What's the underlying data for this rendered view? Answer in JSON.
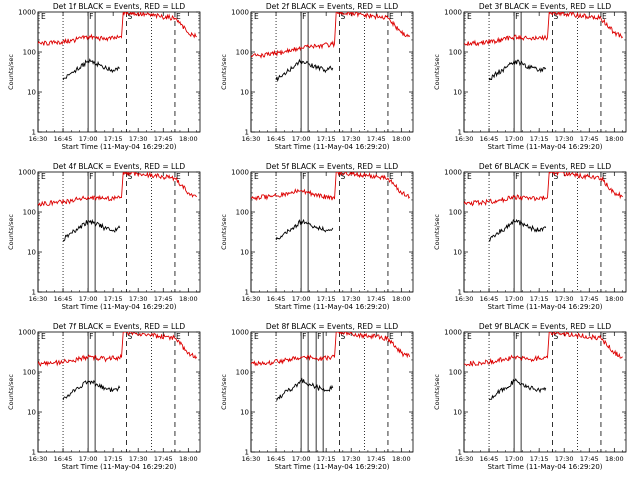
{
  "chart_data": [
    {
      "type": "line",
      "title": "Det 1f BLACK = Events, RED = LLD",
      "xlabel": "Start Time (11-May-04 16:29:20)",
      "ylabel": "Counts/sec",
      "log_y": true,
      "ylim": [
        1,
        1000
      ],
      "xlim": [
        "16:30",
        "18:07"
      ],
      "xticks": [
        "16:30",
        "16:45",
        "17:00",
        "17:15",
        "17:30",
        "17:45",
        "18:00"
      ],
      "yticks": [
        "1",
        "10",
        "100",
        "1000"
      ],
      "markers": [
        {
          "label": "E",
          "time": "16:30"
        },
        {
          "label": "F",
          "time": "17:00"
        },
        {
          "label": "S",
          "time": "17:23"
        },
        {
          "label": "E",
          "time": "17:52"
        }
      ],
      "series": [
        {
          "name": "BLACK = Events",
          "color": "#000000",
          "x": [
            "16:45",
            "16:50",
            "16:55",
            "17:00",
            "17:05",
            "17:10",
            "17:15",
            "17:19"
          ],
          "values": [
            20,
            30,
            40,
            60,
            50,
            40,
            35,
            40
          ]
        },
        {
          "name": "RED = LLD",
          "color": "#dd0000",
          "x": [
            "16:30",
            "16:40",
            "16:50",
            "17:00",
            "17:10",
            "17:20",
            "17:21",
            "17:52",
            "18:00",
            "18:05"
          ],
          "values": [
            160,
            170,
            190,
            240,
            210,
            230,
            1000,
            700,
            300,
            240
          ]
        }
      ]
    },
    {
      "type": "line",
      "title": "Det 2f BLACK = Events, RED = LLD",
      "xlabel": "Start Time (11-May-04 16:29:20)",
      "ylabel": "Counts/sec",
      "log_y": true,
      "ylim": [
        1,
        1000
      ],
      "xlim": [
        "16:30",
        "18:07"
      ],
      "xticks": [
        "16:30",
        "16:45",
        "17:00",
        "17:15",
        "17:30",
        "17:45",
        "18:00"
      ],
      "yticks": [
        "1",
        "10",
        "100",
        "1000"
      ],
      "markers": [
        {
          "label": "E",
          "time": "16:30"
        },
        {
          "label": "F",
          "time": "17:00"
        },
        {
          "label": "S",
          "time": "17:23"
        },
        {
          "label": "E",
          "time": "17:52"
        }
      ],
      "series": [
        {
          "name": "BLACK = Events",
          "color": "#000000",
          "x": [
            "16:45",
            "16:50",
            "16:55",
            "17:00",
            "17:05",
            "17:10",
            "17:15",
            "17:19"
          ],
          "values": [
            20,
            30,
            40,
            60,
            50,
            40,
            35,
            40
          ]
        },
        {
          "name": "RED = LLD",
          "color": "#dd0000",
          "x": [
            "16:30",
            "16:40",
            "16:50",
            "17:00",
            "17:10",
            "17:20",
            "17:21",
            "17:52",
            "18:00",
            "18:05"
          ],
          "values": [
            80,
            85,
            100,
            130,
            140,
            160,
            1000,
            700,
            300,
            240
          ]
        }
      ]
    },
    {
      "type": "line",
      "title": "Det 3f BLACK = Events, RED = LLD",
      "xlabel": "Start Time (11-May-04 16:29:20)",
      "ylabel": "Counts/sec",
      "log_y": true,
      "ylim": [
        1,
        1000
      ],
      "xlim": [
        "16:30",
        "18:07"
      ],
      "xticks": [
        "16:30",
        "16:45",
        "17:00",
        "17:15",
        "17:30",
        "17:45",
        "18:00"
      ],
      "yticks": [
        "1",
        "10",
        "100",
        "1000"
      ],
      "markers": [
        {
          "label": "E",
          "time": "16:30"
        },
        {
          "label": "F",
          "time": "17:00"
        },
        {
          "label": "S",
          "time": "17:23"
        },
        {
          "label": "E",
          "time": "17:52"
        }
      ],
      "series": [
        {
          "name": "BLACK = Events",
          "color": "#000000",
          "x": [
            "16:45",
            "16:50",
            "16:55",
            "17:00",
            "17:05",
            "17:10",
            "17:15",
            "17:19"
          ],
          "values": [
            20,
            30,
            40,
            60,
            50,
            40,
            35,
            40
          ]
        },
        {
          "name": "RED = LLD",
          "color": "#dd0000",
          "x": [
            "16:30",
            "16:40",
            "16:50",
            "17:00",
            "17:10",
            "17:20",
            "17:21",
            "17:52",
            "18:00",
            "18:05"
          ],
          "values": [
            160,
            170,
            190,
            240,
            210,
            230,
            1000,
            700,
            300,
            240
          ]
        }
      ]
    },
    {
      "type": "line",
      "title": "Det 4f BLACK = Events, RED = LLD",
      "xlabel": "Start Time (11-May-04 16:29:20)",
      "ylabel": "Counts/sec",
      "log_y": true,
      "ylim": [
        1,
        1000
      ],
      "xlim": [
        "16:30",
        "18:07"
      ],
      "xticks": [
        "16:30",
        "16:45",
        "17:00",
        "17:15",
        "17:30",
        "17:45",
        "18:00"
      ],
      "yticks": [
        "1",
        "10",
        "100",
        "1000"
      ],
      "markers": [
        {
          "label": "E",
          "time": "16:30"
        },
        {
          "label": "F",
          "time": "17:00"
        },
        {
          "label": "S",
          "time": "17:23"
        },
        {
          "label": "E",
          "time": "17:52"
        }
      ],
      "series": [
        {
          "name": "BLACK = Events",
          "color": "#000000",
          "x": [
            "16:45",
            "16:50",
            "16:55",
            "17:00",
            "17:05",
            "17:10",
            "17:15",
            "17:19"
          ],
          "values": [
            20,
            30,
            40,
            60,
            50,
            40,
            35,
            40
          ]
        },
        {
          "name": "RED = LLD",
          "color": "#dd0000",
          "x": [
            "16:30",
            "16:40",
            "16:50",
            "17:00",
            "17:10",
            "17:20",
            "17:21",
            "17:52",
            "18:00",
            "18:05"
          ],
          "values": [
            160,
            170,
            190,
            240,
            210,
            230,
            1000,
            700,
            300,
            240
          ]
        }
      ]
    },
    {
      "type": "line",
      "title": "Det 5f BLACK = Events, RED = LLD",
      "xlabel": "Start Time (11-May-04 16:29:20)",
      "ylabel": "Counts/sec",
      "log_y": true,
      "ylim": [
        1,
        1000
      ],
      "xlim": [
        "16:30",
        "18:07"
      ],
      "xticks": [
        "16:30",
        "16:45",
        "17:00",
        "17:15",
        "17:30",
        "17:45",
        "18:00"
      ],
      "yticks": [
        "1",
        "10",
        "100",
        "1000"
      ],
      "markers": [
        {
          "label": "E",
          "time": "16:30"
        },
        {
          "label": "F",
          "time": "17:00"
        },
        {
          "label": "S",
          "time": "17:23"
        },
        {
          "label": "E",
          "time": "17:52"
        }
      ],
      "series": [
        {
          "name": "BLACK = Events",
          "color": "#000000",
          "x": [
            "16:45",
            "16:50",
            "16:55",
            "17:00",
            "17:05",
            "17:10",
            "17:15",
            "17:19"
          ],
          "values": [
            20,
            30,
            40,
            60,
            50,
            40,
            35,
            40
          ]
        },
        {
          "name": "RED = LLD",
          "color": "#dd0000",
          "x": [
            "16:30",
            "16:40",
            "16:50",
            "17:00",
            "17:10",
            "17:20",
            "17:21",
            "17:52",
            "18:00",
            "18:05"
          ],
          "values": [
            230,
            240,
            280,
            340,
            270,
            210,
            1000,
            700,
            300,
            240
          ]
        }
      ]
    },
    {
      "type": "line",
      "title": "Det 6f BLACK = Events, RED = LLD",
      "xlabel": "Start Time (11-May-04 16:29:20)",
      "ylabel": "Counts/sec",
      "log_y": true,
      "ylim": [
        1,
        1000
      ],
      "xlim": [
        "16:30",
        "18:07"
      ],
      "xticks": [
        "16:30",
        "16:45",
        "17:00",
        "17:15",
        "17:30",
        "17:45",
        "18:00"
      ],
      "yticks": [
        "1",
        "10",
        "100",
        "1000"
      ],
      "markers": [
        {
          "label": "E",
          "time": "16:30"
        },
        {
          "label": "F",
          "time": "17:00"
        },
        {
          "label": "S",
          "time": "17:23"
        },
        {
          "label": "E",
          "time": "17:52"
        }
      ],
      "series": [
        {
          "name": "BLACK = Events",
          "color": "#000000",
          "x": [
            "16:45",
            "16:50",
            "16:55",
            "17:00",
            "17:05",
            "17:10",
            "17:15",
            "17:19"
          ],
          "values": [
            20,
            30,
            40,
            60,
            50,
            40,
            35,
            40
          ]
        },
        {
          "name": "RED = LLD",
          "color": "#dd0000",
          "x": [
            "16:30",
            "16:40",
            "16:50",
            "17:00",
            "17:10",
            "17:20",
            "17:21",
            "17:52",
            "18:00",
            "18:05"
          ],
          "values": [
            160,
            170,
            190,
            240,
            210,
            230,
            1000,
            700,
            300,
            240
          ]
        }
      ]
    },
    {
      "type": "line",
      "title": "Det 7f BLACK = Events, RED = LLD",
      "xlabel": "Start Time (11-May-04 16:29:20)",
      "ylabel": "Counts/sec",
      "log_y": true,
      "ylim": [
        1,
        1000
      ],
      "xlim": [
        "16:30",
        "18:07"
      ],
      "xticks": [
        "16:30",
        "16:45",
        "17:00",
        "17:15",
        "17:30",
        "17:45",
        "18:00"
      ],
      "yticks": [
        "1",
        "10",
        "100",
        "1000"
      ],
      "markers": [
        {
          "label": "E",
          "time": "16:30"
        },
        {
          "label": "F",
          "time": "17:00"
        },
        {
          "label": "S",
          "time": "17:23"
        },
        {
          "label": "E",
          "time": "17:52"
        }
      ],
      "series": [
        {
          "name": "BLACK = Events",
          "color": "#000000",
          "x": [
            "16:45",
            "16:50",
            "16:55",
            "17:00",
            "17:05",
            "17:10",
            "17:15",
            "17:19"
          ],
          "values": [
            20,
            30,
            40,
            60,
            50,
            40,
            35,
            40
          ]
        },
        {
          "name": "RED = LLD",
          "color": "#dd0000",
          "x": [
            "16:30",
            "16:40",
            "16:50",
            "17:00",
            "17:10",
            "17:20",
            "17:21",
            "17:52",
            "18:00",
            "18:05"
          ],
          "values": [
            160,
            170,
            190,
            240,
            210,
            230,
            1000,
            700,
            300,
            240
          ]
        }
      ]
    },
    {
      "type": "line",
      "title": "Det 8f BLACK = Events, RED = LLD",
      "xlabel": "Start Time (11-May-04 16:29:20)",
      "ylabel": "Counts/sec",
      "log_y": true,
      "ylim": [
        1,
        1000
      ],
      "xlim": [
        "16:30",
        "18:07"
      ],
      "xticks": [
        "16:30",
        "16:45",
        "17:00",
        "17:15",
        "17:30",
        "17:45",
        "18:00"
      ],
      "yticks": [
        "1",
        "10",
        "100",
        "1000"
      ],
      "markers": [
        {
          "label": "E",
          "time": "16:30"
        },
        {
          "label": "F",
          "time": "17:00"
        },
        {
          "label": "F",
          "time": "17:09"
        },
        {
          "label": "S",
          "time": "17:23"
        },
        {
          "label": "E",
          "time": "17:52"
        }
      ],
      "series": [
        {
          "name": "BLACK = Events",
          "color": "#000000",
          "x": [
            "16:45",
            "16:50",
            "16:55",
            "17:00",
            "17:05",
            "17:10",
            "17:15",
            "17:19"
          ],
          "values": [
            20,
            30,
            40,
            60,
            50,
            40,
            35,
            40
          ]
        },
        {
          "name": "RED = LLD",
          "color": "#dd0000",
          "x": [
            "16:30",
            "16:40",
            "16:50",
            "17:00",
            "17:10",
            "17:20",
            "17:21",
            "17:52",
            "18:00",
            "18:05"
          ],
          "values": [
            160,
            170,
            190,
            240,
            210,
            230,
            1000,
            700,
            300,
            240
          ]
        }
      ]
    },
    {
      "type": "line",
      "title": "Det 9f BLACK = Events, RED = LLD",
      "xlabel": "Start Time (11-May-04 16:29:20)",
      "ylabel": "Counts/sec",
      "log_y": true,
      "ylim": [
        1,
        1000
      ],
      "xlim": [
        "16:30",
        "18:07"
      ],
      "xticks": [
        "16:30",
        "16:45",
        "17:00",
        "17:15",
        "17:30",
        "17:45",
        "18:00"
      ],
      "yticks": [
        "1",
        "10",
        "100",
        "1000"
      ],
      "markers": [
        {
          "label": "E",
          "time": "16:30"
        },
        {
          "label": "F",
          "time": "17:00"
        },
        {
          "label": "S",
          "time": "17:23"
        },
        {
          "label": "E",
          "time": "17:52"
        }
      ],
      "series": [
        {
          "name": "BLACK = Events",
          "color": "#000000",
          "x": [
            "16:45",
            "16:50",
            "16:55",
            "17:00",
            "17:05",
            "17:10",
            "17:15",
            "17:19"
          ],
          "values": [
            20,
            30,
            40,
            60,
            50,
            40,
            35,
            40
          ]
        },
        {
          "name": "RED = LLD",
          "color": "#dd0000",
          "x": [
            "16:30",
            "16:40",
            "16:50",
            "17:00",
            "17:10",
            "17:20",
            "17:21",
            "17:52",
            "18:00",
            "18:05"
          ],
          "values": [
            160,
            170,
            190,
            240,
            210,
            230,
            1000,
            700,
            300,
            240
          ]
        }
      ]
    }
  ]
}
